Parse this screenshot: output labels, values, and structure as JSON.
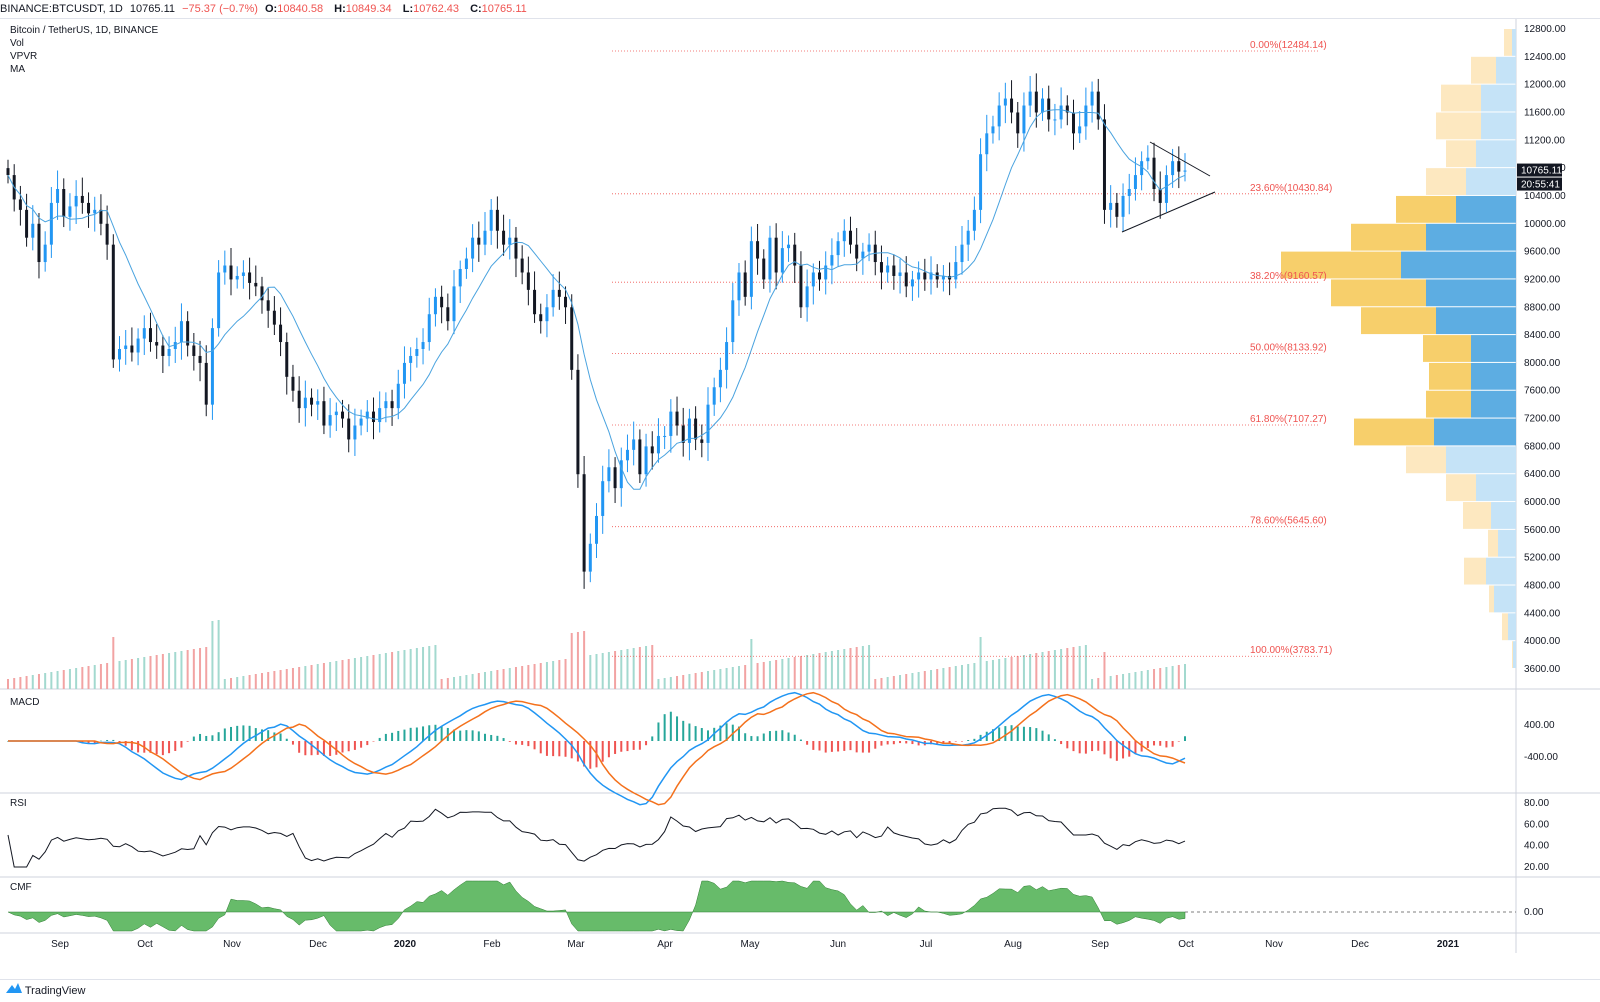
{
  "header": {
    "symbol": "BINANCE:BTCUSDT, 1D",
    "last": "10765.11",
    "change": "−75.37 (−0.7%)",
    "open_label": "O:",
    "open": "10840.58",
    "high_label": "H:",
    "high": "10849.34",
    "low_label": "L:",
    "low": "10762.43",
    "close_label": "C:",
    "close": "10765.11"
  },
  "legend": {
    "title": "Bitcoin / TetherUS, 1D, BINANCE",
    "studies": [
      "Vol",
      "VPVR",
      "MA"
    ]
  },
  "panes": {
    "macd": "MACD",
    "rsi": "RSI",
    "cmf": "CMF"
  },
  "price_badges": {
    "last_price": "10765.11",
    "countdown": "20:55:41"
  },
  "price_axis": [
    "12800.00",
    "12400.00",
    "12000.00",
    "11600.00",
    "11200.00",
    "10800.00",
    "10400.00",
    "10000.00",
    "9600.00",
    "9200.00",
    "8800.00",
    "8400.00",
    "8000.00",
    "7600.00",
    "7200.00",
    "6800.00",
    "6400.00",
    "6000.00",
    "5600.00",
    "5200.00",
    "4800.00",
    "4400.00",
    "4000.00",
    "3600.00"
  ],
  "macd_axis": [
    "400.00",
    "-400.00"
  ],
  "rsi_axis": [
    "80.00",
    "60.00",
    "40.00",
    "20.00"
  ],
  "cmf_axis": [
    "0.00"
  ],
  "time_axis": [
    "Sep",
    "Oct",
    "Nov",
    "Dec",
    "2020",
    "Feb",
    "Mar",
    "Apr",
    "May",
    "Jun",
    "Jul",
    "Aug",
    "Sep",
    "Oct",
    "Nov",
    "Dec",
    "2021"
  ],
  "fib_levels": [
    {
      "label": "0.00%(12484.14)",
      "price": 12484.14
    },
    {
      "label": "23.60%(10430.84)",
      "price": 10430.84
    },
    {
      "label": "38.20%(9160.57)",
      "price": 9160.57
    },
    {
      "label": "50.00%(8133.92)",
      "price": 8133.92
    },
    {
      "label": "61.80%(7107.27)",
      "price": 7107.27
    },
    {
      "label": "78.60%(5645.60)",
      "price": 5645.6
    },
    {
      "label": "100.00%(3783.71)",
      "price": 3783.71
    }
  ],
  "colors": {
    "up": "#2196f3",
    "down": "#131722",
    "vol_up": "#a3d9cf",
    "vol_down": "#f2a3a3",
    "ma": "#4aa3df",
    "fib": "#ef5350",
    "vp_up_va": "#5dade2",
    "vp_down_va": "#f7cf6b",
    "vp_up": "#c5e3f7",
    "vp_down": "#fde8c0",
    "macd_line": "#2196f3",
    "signal_line": "#f4711c",
    "rsi_line": "#131722",
    "cmf_fill": "#4caf50"
  },
  "chart_data": {
    "type": "candlestick",
    "price_range": [
      3500,
      12900
    ],
    "closes": [
      10700,
      10350,
      10200,
      9800,
      10000,
      9450,
      9700,
      10300,
      10500,
      10100,
      10250,
      10400,
      10300,
      10150,
      10200,
      10000,
      9700,
      8050,
      8200,
      8250,
      8150,
      8350,
      8500,
      8300,
      8250,
      8100,
      8200,
      8300,
      8600,
      8250,
      8100,
      8000,
      7400,
      8500,
      9300,
      9400,
      9200,
      9250,
      9300,
      9150,
      9100,
      8900,
      8750,
      8550,
      8300,
      7800,
      7600,
      7350,
      7500,
      7400,
      7450,
      7100,
      7250,
      7300,
      7200,
      6900,
      7100,
      7200,
      7300,
      7150,
      7350,
      7450,
      7350,
      7700,
      8000,
      8100,
      8200,
      8300,
      8700,
      8950,
      8800,
      8600,
      9100,
      9350,
      9500,
      9800,
      9700,
      9900,
      10200,
      9900,
      9700,
      9800,
      9500,
      9300,
      9050,
      8700,
      8600,
      8800,
      9050,
      8950,
      8800,
      7900,
      6400,
      5000,
      5400,
      5800,
      6300,
      6500,
      6200,
      6600,
      6750,
      6900,
      6400,
      6800,
      6700,
      6950,
      6950,
      7300,
      7100,
      6850,
      7200,
      6900,
      6850,
      7400,
      7650,
      7900,
      8300,
      8900,
      9300,
      8950,
      9750,
      9500,
      9200,
      9800,
      9300,
      9650,
      9700,
      9400,
      8800,
      9100,
      9300,
      9200,
      9400,
      9550,
      9750,
      9900,
      9700,
      9500,
      9600,
      9700,
      9450,
      9300,
      9400,
      9250,
      9300,
      9100,
      9200,
      9300,
      9200,
      9300,
      9200,
      9250,
      9200,
      9450,
      9700,
      9900,
      10200,
      11000,
      11300,
      11400,
      11700,
      11800,
      11600,
      11300,
      11700,
      11900,
      11600,
      11800,
      11500,
      11500,
      11700,
      11600,
      11300,
      11400,
      11700,
      11900,
      11500,
      10200,
      10300,
      10100,
      10400,
      10500,
      10700,
      10900,
      10950,
      10500,
      10300,
      10700,
      10900,
      10750,
      10765
    ]
  }
}
